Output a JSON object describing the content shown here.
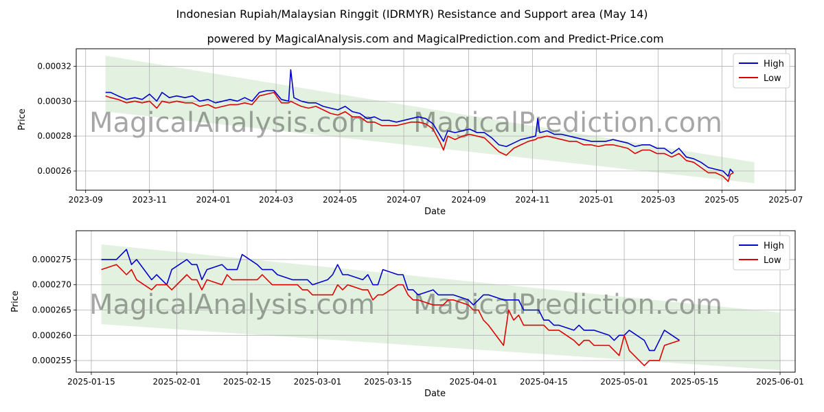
{
  "header": {
    "title": "Indonesian Rupiah/Malaysian Ringgit (IDRMYR) Resistance and Support area (May 14)",
    "subtitle": "powered by MagicalAnalysis.com and MagicalPrediction.com and Predict-Price.com"
  },
  "watermarks": [
    "MagicalAnalysis.com",
    "MagicalPrediction.com"
  ],
  "colors": {
    "high": "#0000cc",
    "low": "#dd0000",
    "band": "#d9ecd6",
    "grid": "#b0b0b0"
  },
  "chart_data": [
    {
      "type": "line",
      "xlabel": "Date",
      "ylabel": "Price",
      "xlim": [
        "2023-08-23",
        "2025-07-10"
      ],
      "ylim": [
        0.000249,
        0.00033
      ],
      "x_ticks": [
        "2023-09",
        "2023-11",
        "2024-01",
        "2024-03",
        "2024-05",
        "2024-07",
        "2024-09",
        "2024-11",
        "2025-01",
        "2025-03",
        "2025-05",
        "2025-07"
      ],
      "y_ticks": [
        "0.00026",
        "0.00028",
        "0.00030",
        "0.00032"
      ],
      "legend": {
        "position": "top-right",
        "entries": [
          "High",
          "Low"
        ]
      },
      "band": {
        "start_date": "2023-09-20",
        "end_date": "2025-06-01",
        "upper_start": 0.000326,
        "upper_end": 0.000265,
        "lower_start": 0.000294,
        "lower_end": 0.000253
      },
      "series": [
        {
          "name": "High",
          "dates": [
            "2023-09-20",
            "2023-09-25",
            "2023-10-02",
            "2023-10-10",
            "2023-10-18",
            "2023-10-25",
            "2023-11-01",
            "2023-11-08",
            "2023-11-13",
            "2023-11-20",
            "2023-11-27",
            "2023-12-05",
            "2023-12-12",
            "2023-12-19",
            "2023-12-27",
            "2024-01-03",
            "2024-01-10",
            "2024-01-17",
            "2024-01-24",
            "2024-01-31",
            "2024-02-07",
            "2024-02-14",
            "2024-02-21",
            "2024-02-28",
            "2024-03-06",
            "2024-03-13",
            "2024-03-15",
            "2024-03-18",
            "2024-03-25",
            "2024-04-01",
            "2024-04-08",
            "2024-04-15",
            "2024-04-22",
            "2024-04-29",
            "2024-05-06",
            "2024-05-13",
            "2024-05-20",
            "2024-05-27",
            "2024-06-03",
            "2024-06-10",
            "2024-06-17",
            "2024-06-24",
            "2024-07-01",
            "2024-07-08",
            "2024-07-15",
            "2024-07-22",
            "2024-07-29",
            "2024-08-05",
            "2024-08-08",
            "2024-08-12",
            "2024-08-19",
            "2024-08-26",
            "2024-09-02",
            "2024-09-09",
            "2024-09-16",
            "2024-09-23",
            "2024-09-30",
            "2024-10-07",
            "2024-10-14",
            "2024-10-21",
            "2024-10-28",
            "2024-11-04",
            "2024-11-06",
            "2024-11-08",
            "2024-11-15",
            "2024-11-22",
            "2024-11-29",
            "2024-12-06",
            "2024-12-13",
            "2024-12-20",
            "2024-12-27",
            "2025-01-03",
            "2025-01-10",
            "2025-01-17",
            "2025-01-24",
            "2025-01-31",
            "2025-02-07",
            "2025-02-14",
            "2025-02-21",
            "2025-02-28",
            "2025-03-07",
            "2025-03-14",
            "2025-03-21",
            "2025-03-28",
            "2025-04-04",
            "2025-04-11",
            "2025-04-18",
            "2025-04-25",
            "2025-05-02",
            "2025-05-07",
            "2025-05-09",
            "2025-05-12"
          ],
          "values": [
            0.000305,
            0.000305,
            0.000303,
            0.000301,
            0.000302,
            0.000301,
            0.000304,
            0.0003,
            0.000305,
            0.000302,
            0.000303,
            0.000302,
            0.000303,
            0.0003,
            0.000301,
            0.000299,
            0.0003,
            0.000301,
            0.0003,
            0.000302,
            0.0003,
            0.000305,
            0.000306,
            0.000306,
            0.000301,
            0.0003,
            0.000318,
            0.000302,
            0.0003,
            0.000299,
            0.000299,
            0.000297,
            0.000296,
            0.000295,
            0.000297,
            0.000294,
            0.000293,
            0.00029,
            0.000291,
            0.000289,
            0.000289,
            0.000288,
            0.000289,
            0.00029,
            0.000291,
            0.00029,
            0.000287,
            0.00028,
            0.000277,
            0.000283,
            0.000282,
            0.000283,
            0.000284,
            0.000282,
            0.000282,
            0.000279,
            0.000275,
            0.000274,
            0.000276,
            0.000278,
            0.000279,
            0.00028,
            0.00029,
            0.000282,
            0.000283,
            0.000281,
            0.000281,
            0.00028,
            0.000279,
            0.000278,
            0.000277,
            0.000277,
            0.000277,
            0.000278,
            0.000277,
            0.000276,
            0.000274,
            0.000275,
            0.000275,
            0.000273,
            0.000273,
            0.00027,
            0.000273,
            0.000268,
            0.000267,
            0.000265,
            0.000262,
            0.000261,
            0.00026,
            0.000257,
            0.000261,
            0.000259
          ]
        },
        {
          "name": "Low",
          "dates": [
            "2023-09-20",
            "2023-09-25",
            "2023-10-02",
            "2023-10-10",
            "2023-10-18",
            "2023-10-25",
            "2023-11-01",
            "2023-11-08",
            "2023-11-13",
            "2023-11-20",
            "2023-11-27",
            "2023-12-05",
            "2023-12-12",
            "2023-12-19",
            "2023-12-27",
            "2024-01-03",
            "2024-01-10",
            "2024-01-17",
            "2024-01-24",
            "2024-01-31",
            "2024-02-07",
            "2024-02-14",
            "2024-02-21",
            "2024-02-28",
            "2024-03-06",
            "2024-03-13",
            "2024-03-15",
            "2024-03-18",
            "2024-03-25",
            "2024-04-01",
            "2024-04-08",
            "2024-04-15",
            "2024-04-22",
            "2024-04-29",
            "2024-05-06",
            "2024-05-13",
            "2024-05-20",
            "2024-05-27",
            "2024-06-03",
            "2024-06-10",
            "2024-06-17",
            "2024-06-24",
            "2024-07-01",
            "2024-07-08",
            "2024-07-15",
            "2024-07-22",
            "2024-07-29",
            "2024-08-05",
            "2024-08-08",
            "2024-08-12",
            "2024-08-19",
            "2024-08-26",
            "2024-09-02",
            "2024-09-09",
            "2024-09-16",
            "2024-09-23",
            "2024-09-30",
            "2024-10-07",
            "2024-10-14",
            "2024-10-21",
            "2024-10-28",
            "2024-11-04",
            "2024-11-06",
            "2024-11-08",
            "2024-11-15",
            "2024-11-22",
            "2024-11-29",
            "2024-12-06",
            "2024-12-13",
            "2024-12-20",
            "2024-12-27",
            "2025-01-03",
            "2025-01-10",
            "2025-01-17",
            "2025-01-24",
            "2025-01-31",
            "2025-02-07",
            "2025-02-14",
            "2025-02-21",
            "2025-02-28",
            "2025-03-07",
            "2025-03-14",
            "2025-03-21",
            "2025-03-28",
            "2025-04-04",
            "2025-04-11",
            "2025-04-18",
            "2025-04-25",
            "2025-05-02",
            "2025-05-07",
            "2025-05-09",
            "2025-05-12"
          ],
          "values": [
            0.000303,
            0.000302,
            0.000301,
            0.000299,
            0.0003,
            0.000299,
            0.0003,
            0.000296,
            0.0003,
            0.000299,
            0.0003,
            0.000299,
            0.000299,
            0.000297,
            0.000298,
            0.000296,
            0.000297,
            0.000298,
            0.000298,
            0.000299,
            0.000298,
            0.000303,
            0.000304,
            0.000305,
            0.000299,
            0.000299,
            0.0003,
            0.000299,
            0.000297,
            0.000296,
            0.000297,
            0.000295,
            0.000293,
            0.000292,
            0.000294,
            0.000291,
            0.000291,
            0.000288,
            0.000288,
            0.000286,
            0.000286,
            0.000286,
            0.000287,
            0.000288,
            0.000288,
            0.000287,
            0.000284,
            0.000276,
            0.000272,
            0.00028,
            0.000278,
            0.00028,
            0.000281,
            0.00028,
            0.000279,
            0.000275,
            0.000271,
            0.000269,
            0.000273,
            0.000275,
            0.000277,
            0.000278,
            0.000279,
            0.000279,
            0.00028,
            0.000279,
            0.000278,
            0.000277,
            0.000277,
            0.000275,
            0.000275,
            0.000274,
            0.000275,
            0.000275,
            0.000274,
            0.000273,
            0.00027,
            0.000272,
            0.000272,
            0.00027,
            0.00027,
            0.000268,
            0.00027,
            0.000266,
            0.000265,
            0.000262,
            0.000259,
            0.000259,
            0.000257,
            0.000254,
            0.000258,
            0.000259
          ]
        }
      ]
    },
    {
      "type": "line",
      "xlabel": "Date",
      "ylabel": "Price",
      "xlim": [
        "2025-01-12",
        "2025-06-04"
      ],
      "ylim": [
        0.0002527,
        0.0002807
      ],
      "x_ticks": [
        "2025-01-15",
        "2025-02-01",
        "2025-02-15",
        "2025-03-01",
        "2025-03-15",
        "2025-04-01",
        "2025-04-15",
        "2025-05-01",
        "2025-05-15",
        "2025-06-01"
      ],
      "y_ticks": [
        "0.000255",
        "0.000260",
        "0.000265",
        "0.000270",
        "0.000275"
      ],
      "legend": {
        "position": "top-right",
        "entries": [
          "High",
          "Low"
        ]
      },
      "band": {
        "start_date": "2025-01-17",
        "end_date": "2025-06-01",
        "upper_start": 0.000278,
        "upper_end": 0.0002645,
        "lower_start": 0.0002622,
        "lower_end": 0.0002531
      },
      "series": [
        {
          "name": "High",
          "dates": [
            "2025-01-17",
            "2025-01-20",
            "2025-01-21",
            "2025-01-22",
            "2025-01-23",
            "2025-01-24",
            "2025-01-27",
            "2025-01-28",
            "2025-01-29",
            "2025-01-30",
            "2025-01-31",
            "2025-02-03",
            "2025-02-04",
            "2025-02-05",
            "2025-02-06",
            "2025-02-07",
            "2025-02-10",
            "2025-02-11",
            "2025-02-12",
            "2025-02-13",
            "2025-02-14",
            "2025-02-17",
            "2025-02-18",
            "2025-02-19",
            "2025-02-20",
            "2025-02-21",
            "2025-02-24",
            "2025-02-25",
            "2025-02-26",
            "2025-02-27",
            "2025-02-28",
            "2025-03-03",
            "2025-03-04",
            "2025-03-05",
            "2025-03-06",
            "2025-03-07",
            "2025-03-10",
            "2025-03-11",
            "2025-03-12",
            "2025-03-13",
            "2025-03-14",
            "2025-03-17",
            "2025-03-18",
            "2025-03-19",
            "2025-03-20",
            "2025-03-21",
            "2025-03-24",
            "2025-03-25",
            "2025-03-26",
            "2025-03-27",
            "2025-03-28",
            "2025-03-31",
            "2025-04-01",
            "2025-04-02",
            "2025-04-03",
            "2025-04-04",
            "2025-04-07",
            "2025-04-08",
            "2025-04-09",
            "2025-04-10",
            "2025-04-11",
            "2025-04-14",
            "2025-04-15",
            "2025-04-16",
            "2025-04-17",
            "2025-04-18",
            "2025-04-21",
            "2025-04-22",
            "2025-04-23",
            "2025-04-24",
            "2025-04-25",
            "2025-04-28",
            "2025-04-29",
            "2025-04-30",
            "2025-05-01",
            "2025-05-02",
            "2025-05-05",
            "2025-05-06",
            "2025-05-07",
            "2025-05-08",
            "2025-05-09",
            "2025-05-12"
          ],
          "values": [
            0.000275,
            0.000275,
            0.000276,
            0.000277,
            0.000274,
            0.000275,
            0.000271,
            0.000272,
            0.000271,
            0.00027,
            0.000273,
            0.000275,
            0.000274,
            0.000274,
            0.000271,
            0.000273,
            0.000274,
            0.000273,
            0.000273,
            0.000273,
            0.000276,
            0.000274,
            0.000273,
            0.000273,
            0.000273,
            0.000272,
            0.000271,
            0.000271,
            0.000271,
            0.000271,
            0.00027,
            0.000271,
            0.000272,
            0.000274,
            0.000272,
            0.000272,
            0.000271,
            0.000272,
            0.00027,
            0.00027,
            0.000273,
            0.000272,
            0.000272,
            0.000269,
            0.000269,
            0.000268,
            0.000269,
            0.000268,
            0.000268,
            0.000268,
            0.000268,
            0.000267,
            0.000266,
            0.000267,
            0.000268,
            0.000268,
            0.000267,
            0.000267,
            0.000267,
            0.000267,
            0.000265,
            0.000265,
            0.000263,
            0.000263,
            0.000262,
            0.000262,
            0.000261,
            0.000262,
            0.000261,
            0.000261,
            0.000261,
            0.00026,
            0.000259,
            0.00026,
            0.00026,
            0.000261,
            0.000259,
            0.000257,
            0.000257,
            0.000259,
            0.000261,
            0.000259
          ]
        },
        {
          "name": "Low",
          "dates": [
            "2025-01-17",
            "2025-01-20",
            "2025-01-21",
            "2025-01-22",
            "2025-01-23",
            "2025-01-24",
            "2025-01-27",
            "2025-01-28",
            "2025-01-29",
            "2025-01-30",
            "2025-01-31",
            "2025-02-03",
            "2025-02-04",
            "2025-02-05",
            "2025-02-06",
            "2025-02-07",
            "2025-02-10",
            "2025-02-11",
            "2025-02-12",
            "2025-02-13",
            "2025-02-14",
            "2025-02-17",
            "2025-02-18",
            "2025-02-19",
            "2025-02-20",
            "2025-02-21",
            "2025-02-24",
            "2025-02-25",
            "2025-02-26",
            "2025-02-27",
            "2025-02-28",
            "2025-03-03",
            "2025-03-04",
            "2025-03-05",
            "2025-03-06",
            "2025-03-07",
            "2025-03-10",
            "2025-03-11",
            "2025-03-12",
            "2025-03-13",
            "2025-03-14",
            "2025-03-17",
            "2025-03-18",
            "2025-03-19",
            "2025-03-20",
            "2025-03-21",
            "2025-03-24",
            "2025-03-25",
            "2025-03-26",
            "2025-03-27",
            "2025-03-28",
            "2025-03-31",
            "2025-04-01",
            "2025-04-02",
            "2025-04-03",
            "2025-04-04",
            "2025-04-07",
            "2025-04-08",
            "2025-04-09",
            "2025-04-10",
            "2025-04-11",
            "2025-04-14",
            "2025-04-15",
            "2025-04-16",
            "2025-04-17",
            "2025-04-18",
            "2025-04-21",
            "2025-04-22",
            "2025-04-23",
            "2025-04-24",
            "2025-04-25",
            "2025-04-28",
            "2025-04-29",
            "2025-04-30",
            "2025-05-01",
            "2025-05-02",
            "2025-05-05",
            "2025-05-06",
            "2025-05-07",
            "2025-05-08",
            "2025-05-09",
            "2025-05-12"
          ],
          "values": [
            0.000273,
            0.000274,
            0.000273,
            0.000272,
            0.000273,
            0.000271,
            0.000269,
            0.00027,
            0.00027,
            0.00027,
            0.000269,
            0.000272,
            0.000271,
            0.000271,
            0.000269,
            0.000271,
            0.00027,
            0.000272,
            0.000271,
            0.000271,
            0.000271,
            0.000271,
            0.000272,
            0.000271,
            0.00027,
            0.00027,
            0.00027,
            0.00027,
            0.000269,
            0.000269,
            0.000268,
            0.000268,
            0.000268,
            0.00027,
            0.000269,
            0.00027,
            0.000269,
            0.000269,
            0.000267,
            0.000268,
            0.000268,
            0.00027,
            0.00027,
            0.000268,
            0.000267,
            0.000267,
            0.000266,
            0.000266,
            0.000266,
            0.000267,
            0.000267,
            0.000266,
            0.000265,
            0.000265,
            0.000263,
            0.000262,
            0.000258,
            0.000265,
            0.000263,
            0.000264,
            0.000262,
            0.000262,
            0.000262,
            0.000261,
            0.000261,
            0.000261,
            0.000259,
            0.000258,
            0.000259,
            0.000259,
            0.000258,
            0.000258,
            0.000257,
            0.000256,
            0.00026,
            0.000257,
            0.000254,
            0.000255,
            0.000255,
            0.000255,
            0.000258,
            0.000259
          ]
        }
      ]
    }
  ]
}
